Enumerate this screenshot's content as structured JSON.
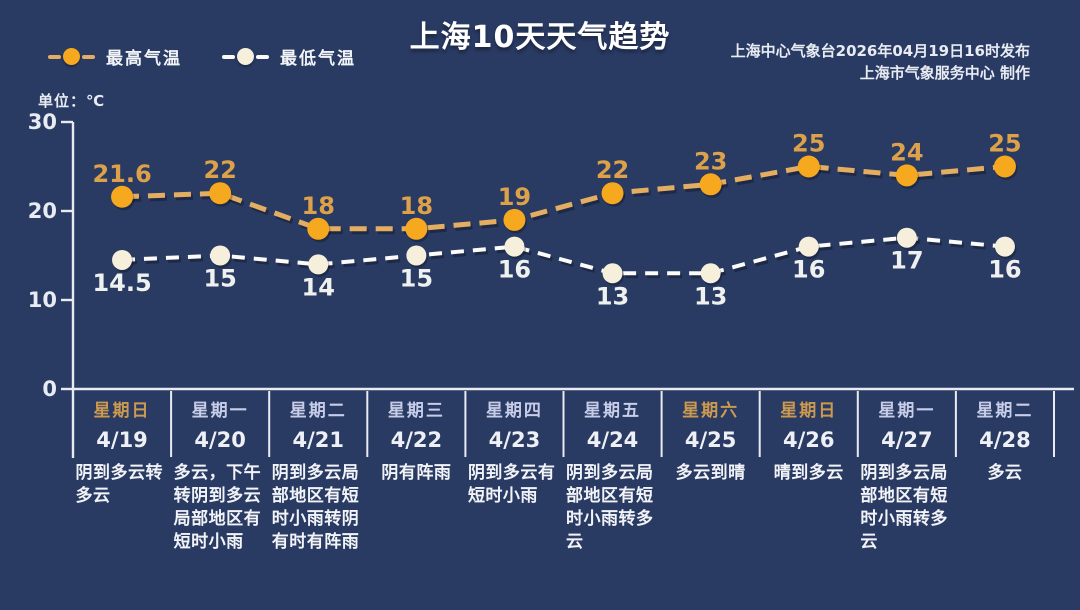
{
  "header": {
    "title": "上海10天天气趋势",
    "publisher_line1": "上海中心气象台2026年04月19日16时发布",
    "publisher_line2": "上海市气象服务中心 制作",
    "unit_label": "单位：℃"
  },
  "legend": {
    "items": [
      {
        "label": "最高气温",
        "series": "high"
      },
      {
        "label": "最低气温",
        "series": "low"
      }
    ]
  },
  "chart_data": {
    "type": "line",
    "title": "上海10天天气趋势",
    "categories": [
      "4/19",
      "4/20",
      "4/21",
      "4/22",
      "4/23",
      "4/24",
      "4/25",
      "4/26",
      "4/27",
      "4/28"
    ],
    "series": [
      {
        "name": "最高气温",
        "values": [
          21.6,
          22,
          18,
          18,
          19,
          22,
          23,
          25,
          24,
          25
        ]
      },
      {
        "name": "最低气温",
        "values": [
          14.5,
          15,
          14,
          15,
          16,
          13,
          13,
          16,
          17,
          16
        ]
      }
    ],
    "ylabel": "单位：℃",
    "ylim": [
      0,
      30
    ],
    "yticks": [
      0,
      10,
      20,
      30
    ],
    "grid": false,
    "line_style": "dashed",
    "legend_position": "top-left"
  },
  "days": [
    {
      "weekday": "星期日",
      "date": "4/19",
      "weather": "阴到多云转多云",
      "weekend": true
    },
    {
      "weekday": "星期一",
      "date": "4/20",
      "weather": "多云，下午转阴到多云局部地区有短时小雨",
      "weekend": false
    },
    {
      "weekday": "星期二",
      "date": "4/21",
      "weather": "阴到多云局部地区有短时小雨转阴有时有阵雨",
      "weekend": false
    },
    {
      "weekday": "星期三",
      "date": "4/22",
      "weather": "阴有阵雨",
      "weekend": false
    },
    {
      "weekday": "星期四",
      "date": "4/23",
      "weather": "阴到多云有短时小雨",
      "weekend": false
    },
    {
      "weekday": "星期五",
      "date": "4/24",
      "weather": "阴到多云局部地区有短时小雨转多云",
      "weekend": false
    },
    {
      "weekday": "星期六",
      "date": "4/25",
      "weather": "多云到晴",
      "weekend": true
    },
    {
      "weekday": "星期日",
      "date": "4/26",
      "weather": "晴到多云",
      "weekend": true
    },
    {
      "weekday": "星期一",
      "date": "4/27",
      "weather": "阴到多云局部地区有短时小雨转多云",
      "weekend": false
    },
    {
      "weekday": "星期二",
      "date": "4/28",
      "weather": "多云",
      "weekend": false
    }
  ],
  "colors": {
    "background": "#293A63",
    "title_text": "#FFFFFF",
    "axis": "#E8EBF2",
    "high_line": "#E3AE61",
    "high_marker": "#F6A81E",
    "high_label": "#DDA14A",
    "low_line": "#FBFBFA",
    "low_marker": "#F6EFDC",
    "low_label": "#EFF1EE",
    "weekday": "#C7CDE8",
    "weekend": "#CB9A4F",
    "date": "#EEF0F6",
    "weather_text": "#F1F3F7"
  }
}
